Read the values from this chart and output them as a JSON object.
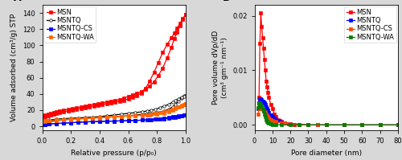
{
  "panel_A": {
    "title": "A",
    "xlabel": "Relative pressure (p/p₀)",
    "ylabel": "Volume adsorbed (cm³/g) STP",
    "xlim": [
      0,
      1.0
    ],
    "ylim": [
      -5,
      150
    ],
    "yticks": [
      0,
      20,
      40,
      60,
      80,
      100,
      120,
      140
    ],
    "xticks": [
      0.0,
      0.2,
      0.4,
      0.6,
      0.8,
      1.0
    ],
    "series": {
      "MSN": {
        "color": "#FF0000",
        "marker": "s",
        "markerfacecolor": "#FF0000",
        "markersize": 2.5,
        "linewidth": 0.9,
        "adsorption_x": [
          0.005,
          0.02,
          0.04,
          0.06,
          0.08,
          0.1,
          0.12,
          0.15,
          0.18,
          0.21,
          0.24,
          0.27,
          0.3,
          0.33,
          0.36,
          0.39,
          0.42,
          0.45,
          0.48,
          0.51,
          0.54,
          0.57,
          0.6,
          0.63,
          0.66,
          0.69,
          0.72,
          0.75,
          0.78,
          0.81,
          0.84,
          0.87,
          0.9,
          0.92,
          0.94,
          0.96,
          0.98,
          1.0
        ],
        "adsorption_y": [
          13,
          14,
          15,
          16,
          17,
          18,
          19,
          20,
          21,
          22,
          23,
          24,
          25,
          26,
          27,
          28,
          29,
          30,
          31,
          32,
          33,
          35,
          37,
          39,
          41,
          43,
          46,
          50,
          55,
          63,
          72,
          84,
          97,
          108,
          116,
          124,
          132,
          138
        ],
        "desorption_x": [
          1.0,
          0.98,
          0.96,
          0.94,
          0.92,
          0.9,
          0.87,
          0.84,
          0.81,
          0.78,
          0.75,
          0.72,
          0.69,
          0.66,
          0.63,
          0.6,
          0.57,
          0.54,
          0.51,
          0.48,
          0.45,
          0.42,
          0.39,
          0.36,
          0.33,
          0.3,
          0.27,
          0.24,
          0.21,
          0.18,
          0.15,
          0.12,
          0.1,
          0.08,
          0.06,
          0.04,
          0.02,
          0.005
        ],
        "desorption_y": [
          138,
          133,
          127,
          121,
          115,
          109,
          101,
          91,
          79,
          67,
          56,
          47,
          41,
          38,
          36,
          34,
          32,
          31,
          30,
          29,
          28,
          27,
          26,
          25,
          24,
          23,
          22,
          21,
          20,
          19,
          18,
          17,
          16,
          15,
          14,
          13,
          12,
          11
        ]
      },
      "MSNTQ": {
        "color": "#000000",
        "marker": "o",
        "markerfacecolor": "white",
        "markersize": 2.5,
        "linewidth": 0.9,
        "adsorption_x": [
          0.005,
          0.02,
          0.05,
          0.1,
          0.15,
          0.2,
          0.25,
          0.3,
          0.35,
          0.4,
          0.45,
          0.5,
          0.55,
          0.6,
          0.65,
          0.7,
          0.75,
          0.8,
          0.85,
          0.88,
          0.91,
          0.93,
          0.95,
          0.97,
          0.99,
          1.0
        ],
        "adsorption_y": [
          4,
          5,
          6,
          7,
          8,
          9,
          9.5,
          10,
          10.5,
          11,
          11.5,
          12,
          12.5,
          13,
          14,
          15,
          16,
          17,
          19,
          21,
          24,
          27,
          31,
          35,
          38,
          38
        ],
        "desorption_x": [
          1.0,
          0.99,
          0.97,
          0.95,
          0.93,
          0.91,
          0.88,
          0.85,
          0.82,
          0.79,
          0.76,
          0.73,
          0.7,
          0.65,
          0.6,
          0.55,
          0.5,
          0.45,
          0.4,
          0.35,
          0.3,
          0.25,
          0.2,
          0.15,
          0.1,
          0.05,
          0.02,
          0.005
        ],
        "desorption_y": [
          38,
          37,
          36,
          34,
          32,
          30,
          27,
          25,
          23,
          21,
          20,
          19,
          18,
          17,
          16,
          15,
          14,
          13,
          12,
          11.5,
          11,
          10.5,
          10,
          9.5,
          9,
          8,
          7,
          6
        ]
      },
      "MSNTQ-CS": {
        "color": "#0000FF",
        "marker": "s",
        "markerfacecolor": "#0000FF",
        "markersize": 2.5,
        "linewidth": 0.9,
        "adsorption_x": [
          0.005,
          0.02,
          0.05,
          0.1,
          0.15,
          0.2,
          0.25,
          0.3,
          0.35,
          0.4,
          0.45,
          0.5,
          0.55,
          0.6,
          0.65,
          0.7,
          0.75,
          0.8,
          0.85,
          0.88,
          0.91,
          0.93,
          0.95,
          0.97,
          0.99,
          1.0
        ],
        "adsorption_y": [
          2,
          2.5,
          3,
          3.5,
          4,
          4.5,
          5,
          5.5,
          5.8,
          6,
          6.2,
          6.5,
          6.8,
          7,
          7.3,
          7.7,
          8.2,
          8.8,
          9.5,
          10,
          10.8,
          11.5,
          12,
          13,
          14,
          14.5
        ],
        "desorption_x": [
          1.0,
          0.99,
          0.97,
          0.95,
          0.93,
          0.91,
          0.88,
          0.85,
          0.82,
          0.79,
          0.76,
          0.73,
          0.7,
          0.65,
          0.6,
          0.55,
          0.5,
          0.45,
          0.4,
          0.35,
          0.3,
          0.25,
          0.2,
          0.15,
          0.1,
          0.05,
          0.02,
          0.005
        ],
        "desorption_y": [
          14.5,
          14,
          13.5,
          13,
          12.5,
          12,
          11,
          10,
          9.5,
          9,
          8.5,
          8,
          7.7,
          7.3,
          7,
          6.8,
          6.5,
          6.2,
          6,
          5.8,
          5.5,
          5,
          4.5,
          4,
          3.5,
          3,
          2.5,
          2
        ]
      },
      "MSNTQ-WA": {
        "color": "#FF6600",
        "marker": "s",
        "markerfacecolor": "#FF6600",
        "markersize": 2.5,
        "linewidth": 0.9,
        "adsorption_x": [
          0.005,
          0.02,
          0.05,
          0.1,
          0.15,
          0.2,
          0.25,
          0.3,
          0.35,
          0.4,
          0.45,
          0.5,
          0.55,
          0.6,
          0.65,
          0.7,
          0.75,
          0.8,
          0.85,
          0.88,
          0.91,
          0.93,
          0.95,
          0.97,
          0.99,
          1.0
        ],
        "adsorption_y": [
          6,
          6.5,
          7,
          7.5,
          8,
          8.5,
          9,
          9.5,
          10,
          10.5,
          11,
          11.5,
          12,
          12.5,
          13,
          13.5,
          14,
          15,
          16.5,
          18,
          20,
          22,
          24,
          26,
          27,
          27.5
        ],
        "desorption_x": [
          1.0,
          0.99,
          0.97,
          0.95,
          0.93,
          0.91,
          0.88,
          0.85,
          0.82,
          0.79,
          0.76,
          0.73,
          0.7,
          0.65,
          0.6,
          0.55,
          0.5,
          0.45,
          0.4,
          0.35,
          0.3,
          0.25,
          0.2,
          0.15,
          0.1,
          0.05,
          0.02,
          0.005
        ],
        "desorption_y": [
          27.5,
          26.5,
          25,
          24,
          22.5,
          21,
          19.5,
          18,
          17,
          16,
          15,
          14.5,
          14,
          13.5,
          13,
          12.5,
          12,
          11.5,
          11,
          10.5,
          10,
          9.5,
          9,
          8.5,
          8,
          7.5,
          7,
          6.5
        ]
      }
    }
  },
  "panel_B": {
    "title": "B",
    "xlabel": "Pore diameter (nm)",
    "ylabel": "Pore volume dVp/dD\n(cm³ gm⁻¹ nm⁻¹)",
    "xlim": [
      0,
      80
    ],
    "ylim": [
      -0.001,
      0.022
    ],
    "yticks": [
      0.0,
      0.01,
      0.02
    ],
    "xticks": [
      0,
      10,
      20,
      30,
      40,
      50,
      60,
      70,
      80
    ],
    "series": {
      "MSN": {
        "color": "#FF0000",
        "marker": "s",
        "markersize": 2.5,
        "linewidth": 0.9,
        "x": [
          2.0,
          2.5,
          3.0,
          3.5,
          4.0,
          4.5,
          5.0,
          5.5,
          6.0,
          6.5,
          7.0,
          7.5,
          8.0,
          9.0,
          10.0,
          11.0,
          12.0,
          13.0,
          14.0,
          15.0,
          17.0,
          19.0,
          22.0,
          25.0,
          30.0,
          35.0,
          40.0,
          50.0,
          60.0,
          70.0,
          80.0
        ],
        "y": [
          0.003,
          0.005,
          0.015,
          0.0205,
          0.018,
          0.016,
          0.014,
          0.012,
          0.01,
          0.008,
          0.007,
          0.006,
          0.005,
          0.0038,
          0.003,
          0.002,
          0.0015,
          0.001,
          0.0008,
          0.0006,
          0.0004,
          0.0002,
          0.0001,
          0.0001,
          0.0,
          0.0,
          0.0,
          0.0,
          0.0,
          0.0,
          0.0
        ]
      },
      "MSNTQ": {
        "color": "#0000FF",
        "marker": "s",
        "markersize": 2.5,
        "linewidth": 0.9,
        "x": [
          2.0,
          2.5,
          3.0,
          3.5,
          4.0,
          4.5,
          5.0,
          5.5,
          6.0,
          6.5,
          7.0,
          7.5,
          8.0,
          9.0,
          10.0,
          11.0,
          12.0,
          13.0,
          15.0,
          17.0,
          20.0,
          25.0,
          30.0,
          35.0,
          40.0,
          50.0,
          60.0,
          70.0,
          80.0
        ],
        "y": [
          0.003,
          0.004,
          0.0048,
          0.0048,
          0.0046,
          0.0044,
          0.0042,
          0.004,
          0.0037,
          0.0033,
          0.003,
          0.0027,
          0.0022,
          0.0018,
          0.0015,
          0.0012,
          0.001,
          0.0008,
          0.0005,
          0.0003,
          0.0002,
          0.0001,
          0.0,
          0.0,
          0.0,
          0.0,
          0.0,
          0.0,
          0.0
        ]
      },
      "MSNTQ-CS": {
        "color": "#FF4400",
        "marker": "s",
        "markersize": 2.5,
        "linewidth": 0.9,
        "x": [
          2.0,
          2.5,
          3.0,
          3.5,
          4.0,
          4.5,
          5.0,
          5.5,
          6.0,
          6.5,
          7.0,
          7.5,
          8.0,
          9.0,
          10.0,
          12.0,
          15.0,
          17.0,
          20.0,
          25.0,
          30.0,
          35.0,
          40.0,
          50.0,
          60.0,
          70.0,
          80.0
        ],
        "y": [
          0.002,
          0.003,
          0.0033,
          0.0032,
          0.003,
          0.0028,
          0.0026,
          0.0024,
          0.0022,
          0.002,
          0.0017,
          0.0015,
          0.0012,
          0.001,
          0.0008,
          0.0006,
          0.0004,
          0.0003,
          0.0002,
          0.0001,
          0.0,
          0.0,
          0.0,
          0.0,
          0.0,
          0.0,
          0.0
        ]
      },
      "MSNTQ-WA": {
        "color": "#008000",
        "marker": "s",
        "markersize": 2.5,
        "linewidth": 0.9,
        "x": [
          2.0,
          2.5,
          3.0,
          3.5,
          4.0,
          4.5,
          5.0,
          5.5,
          6.0,
          6.5,
          7.0,
          7.5,
          8.0,
          9.0,
          10.0,
          12.0,
          15.0,
          20.0,
          25.0,
          30.0,
          40.0,
          50.0,
          60.0,
          70.0,
          80.0
        ],
        "y": [
          0.0032,
          0.004,
          0.004,
          0.0038,
          0.0035,
          0.003,
          0.0025,
          0.002,
          0.0015,
          0.001,
          0.0007,
          0.0005,
          0.0003,
          0.0002,
          0.0001,
          0.0001,
          0.0,
          0.0,
          0.0,
          0.0,
          0.0,
          0.0,
          0.0,
          0.0,
          0.0
        ]
      }
    }
  },
  "figure_bg": "#D8D8D8",
  "plot_bg": "#FFFFFF",
  "right_panel_bg": "#E8E8E8",
  "font_size": 6.5,
  "label_fontsize": 6.5,
  "tick_fontsize": 6
}
